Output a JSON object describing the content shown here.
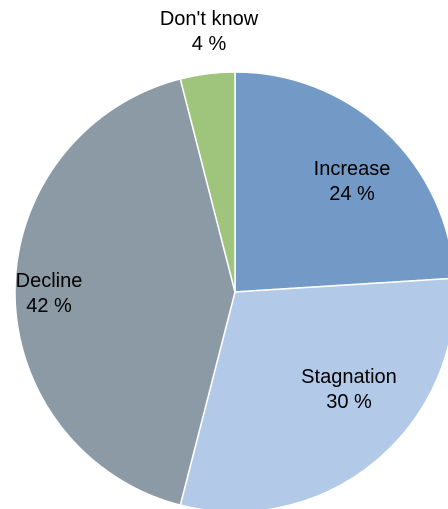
{
  "chart_data": {
    "type": "pie",
    "title": "",
    "start_angle_deg": 0,
    "direction": "clockwise",
    "slices": [
      {
        "label": "Increase",
        "value": 24,
        "value_text": "24 %",
        "color": "#7399c6"
      },
      {
        "label": "Stagnation",
        "value": 30,
        "value_text": "30 %",
        "color": "#b3c9e8"
      },
      {
        "label": "Decline",
        "value": 42,
        "value_text": "42 %",
        "color": "#8b9aa4"
      },
      {
        "label": "Don't know",
        "value": 4,
        "value_text": "4 %",
        "color": "#9fc47c"
      }
    ]
  }
}
